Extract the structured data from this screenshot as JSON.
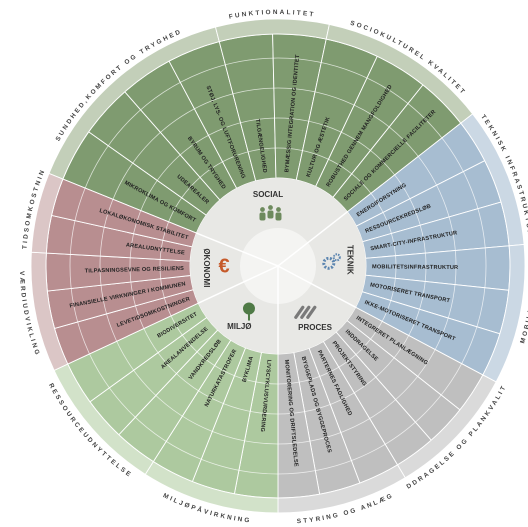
{
  "sectors": [
    {
      "name": "SOCIAL",
      "groups": [
        {
          "label": "SUNDHED,KOMFORT OG TRYGHED",
          "criteria": [
            "MIKROKLIMA OG KOMFORT",
            "UDEAREALER",
            "BYRUM OG TRYGHED",
            "STØJ, LYS- OG LUFTFORURENING"
          ]
        },
        {
          "label": "FUNKTIONALITET",
          "criteria": [
            "TILGÆNGELIGHED",
            "BYMÆSSIG INTEGRATION OG IDENTITET"
          ]
        },
        {
          "label": "SOCIOKULTUREL KVALITET",
          "criteria": [
            "KULTUR OG ÆSTETIK",
            "ROBUSTHED GENNEM MANGFOLDIGHED",
            "SOCIALE OG KOMMERCIELLE FACILITETER"
          ]
        }
      ]
    },
    {
      "name": "TEKNIK",
      "groups": [
        {
          "label": "TEKNISK INFRASTRUKTUR",
          "criteria": [
            "ENERGIFORSYNING",
            "RESSOURCEKREDSLØB",
            "SMART-CITY-INFRASTRUKTUR"
          ]
        },
        {
          "label": "MOBILITET",
          "criteria": [
            "MOBILITETSINFRASTRUKTUR",
            "MOTORISERET TRANSPORT",
            "IKKE-MOTORISERET TRANSPORT"
          ]
        }
      ]
    },
    {
      "name": "PROCES",
      "groups": [
        {
          "label": "INDDRAGELSE OG PLANKVALITET",
          "criteria": [
            "INTEGRERET PLANLÆGNING",
            "INDDRAGELSE",
            "PROJEKTSTYRING"
          ]
        },
        {
          "label": "STYRING OG ANLÆG",
          "criteria": [
            "PARTERNES FAGLIGHED",
            "BYGGEPLADS OG BYGGEPROCES",
            "MONITORERING OG DRIFTSLEDELSE"
          ]
        }
      ]
    },
    {
      "name": "MILJØ",
      "groups": [
        {
          "label": "MILJØPÅVIRKNING",
          "criteria": [
            "LIVSCYKLUSVURDERING",
            "BYKLIMA",
            "NATURKATASTROFER"
          ]
        },
        {
          "label": "RESSOURCEUDNYTTELSE",
          "criteria": [
            "VANDKREDSLØB",
            "AREALANVENDELSE",
            "BIODIVERSITET"
          ]
        }
      ]
    },
    {
      "name": "ØKONOMI",
      "icon": "€",
      "groups": [
        {
          "label": "VÆRDIUDVIKLING",
          "criteria": [
            "LEVETIDSOMKOSTNINGER",
            "FINANSIELLE VIRKNINGER I KOMMUNEN",
            "TILPASNINGSEVNE OG RESILIENS"
          ]
        },
        {
          "label": "LEVETIDSOMKOSTNINGER",
          "criteria": [
            "AREALUDNYTTELSE",
            "LOKALØKONOMISK STABILITET"
          ]
        }
      ]
    }
  ]
}
